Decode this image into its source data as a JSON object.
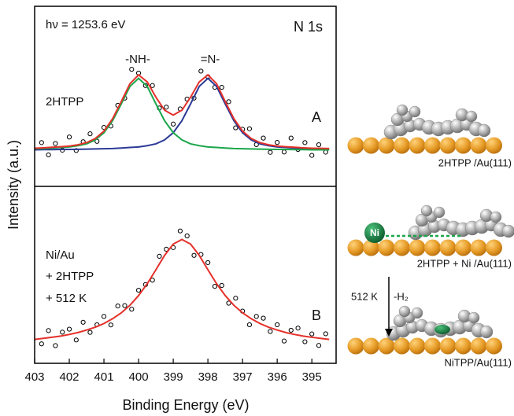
{
  "chart_data": [
    {
      "type": "scatter",
      "annotations": {
        "energy": "hν = 1253.6 eV",
        "core_level": "N 1s",
        "peak_labels": [
          "-NH-",
          "=N-"
        ],
        "sample": "2HTPP",
        "panel": "A"
      },
      "ylabel": "Intensity (a.u.)",
      "xlim": [
        403,
        394.3
      ],
      "ylim": [
        0,
        1
      ],
      "point_color": "#000000",
      "points": {
        "x": [
          402.8,
          402.6,
          402.4,
          402.2,
          402.0,
          401.8,
          401.6,
          401.4,
          401.2,
          401.0,
          400.8,
          400.6,
          400.4,
          400.2,
          400.0,
          399.8,
          399.6,
          399.4,
          399.2,
          399.0,
          398.8,
          398.6,
          398.4,
          398.2,
          398.0,
          397.8,
          397.6,
          397.4,
          397.2,
          397.0,
          396.8,
          396.6,
          396.4,
          396.2,
          396.0,
          395.8,
          395.6,
          395.4,
          395.2,
          395.0,
          394.8,
          394.6
        ],
        "values": [
          0.243,
          0.175,
          0.238,
          0.201,
          0.274,
          0.199,
          0.248,
          0.292,
          0.25,
          0.327,
          0.335,
          0.45,
          0.49,
          0.65,
          0.629,
          0.56,
          0.56,
          0.435,
          0.44,
          0.346,
          0.43,
          0.485,
          0.49,
          0.64,
          0.609,
          0.55,
          0.55,
          0.47,
          0.325,
          0.317,
          0.32,
          0.232,
          0.268,
          0.189,
          0.244,
          0.191,
          0.268,
          0.205,
          0.243,
          0.172,
          0.231,
          0.19
        ]
      },
      "fits": {
        "x": [
          403,
          402.75,
          402.5,
          402.25,
          402,
          401.75,
          401.5,
          401.25,
          401,
          400.75,
          400.5,
          400.25,
          400,
          399.75,
          399.5,
          399.25,
          399,
          398.75,
          398.5,
          398.25,
          398,
          397.75,
          397.5,
          397.25,
          397,
          396.75,
          396.5,
          396.25,
          396,
          395.75,
          395.5,
          395.25,
          395,
          394.75,
          394.5
        ],
        "curves": [
          {
            "color": "#2b3a96",
            "values": [
              0.203,
              0.204,
              0.204,
              0.205,
              0.205,
              0.206,
              0.207,
              0.208,
              0.209,
              0.21,
              0.213,
              0.216,
              0.219,
              0.226,
              0.236,
              0.258,
              0.298,
              0.365,
              0.458,
              0.555,
              0.6,
              0.555,
              0.458,
              0.365,
              0.298,
              0.258,
              0.236,
              0.226,
              0.219,
              0.216,
              0.213,
              0.21,
              0.209,
              0.208,
              0.207
            ]
          },
          {
            "color": "#1aa64a",
            "values": [
              0.209,
              0.21,
              0.213,
              0.216,
              0.219,
              0.226,
              0.236,
              0.258,
              0.298,
              0.365,
              0.458,
              0.555,
              0.6,
              0.555,
              0.458,
              0.365,
              0.298,
              0.258,
              0.236,
              0.226,
              0.219,
              0.216,
              0.213,
              0.21,
              0.209,
              0.208,
              0.207,
              0.206,
              0.205,
              0.205,
              0.204,
              0.204,
              0.203,
              0.203,
              0.203
            ]
          },
          {
            "color": "#e5302a",
            "values": [
              0.212,
              0.214,
              0.217,
              0.22,
              0.224,
              0.231,
              0.243,
              0.266,
              0.307,
              0.376,
              0.471,
              0.57,
              0.619,
              0.58,
              0.495,
              0.423,
              0.396,
              0.423,
              0.495,
              0.58,
              0.619,
              0.57,
              0.471,
              0.376,
              0.307,
              0.266,
              0.243,
              0.231,
              0.224,
              0.22,
              0.217,
              0.214,
              0.212,
              0.211,
              0.21
            ]
          }
        ]
      }
    },
    {
      "type": "scatter",
      "annotations": {
        "sample": [
          "Ni/Au",
          "+ 2HTPP",
          "+ 512 K"
        ],
        "panel": "B"
      },
      "xlabel": "Binding Energy (eV)",
      "xlim": [
        403,
        394.3
      ],
      "xticks": [
        403,
        402,
        401,
        400,
        399,
        398,
        397,
        396,
        395
      ],
      "ylim": [
        0,
        1
      ],
      "point_color": "#000000",
      "points": {
        "x": [
          402.8,
          402.6,
          402.4,
          402.2,
          402.0,
          401.8,
          401.6,
          401.4,
          401.2,
          401.0,
          400.8,
          400.6,
          400.4,
          400.2,
          400.0,
          399.8,
          399.6,
          399.4,
          399.2,
          399.0,
          398.8,
          398.6,
          398.4,
          398.2,
          398.0,
          397.8,
          397.6,
          397.4,
          397.2,
          397.0,
          396.8,
          396.6,
          396.4,
          396.2,
          396.0,
          395.8,
          395.6,
          395.4,
          395.2,
          395.0,
          394.8,
          394.6
        ],
        "values": [
          0.11,
          0.185,
          0.1,
          0.176,
          0.193,
          0.132,
          0.232,
          0.175,
          0.218,
          0.265,
          0.217,
          0.324,
          0.326,
          0.306,
          0.413,
          0.445,
          0.47,
          0.605,
          0.645,
          0.654,
          0.748,
          0.72,
          0.61,
          0.615,
          0.569,
          0.435,
          0.44,
          0.34,
          0.368,
          0.295,
          0.218,
          0.265,
          0.255,
          0.18,
          0.218,
          0.126,
          0.187,
          0.199,
          0.122,
          0.166,
          0.101,
          0.167
        ]
      },
      "fits": {
        "x": [
          403,
          402.75,
          402.5,
          402.25,
          402,
          401.75,
          401.5,
          401.25,
          401,
          400.75,
          400.5,
          400.25,
          400,
          399.75,
          399.5,
          399.25,
          399,
          398.75,
          398.5,
          398.25,
          398,
          397.75,
          397.5,
          397.25,
          397,
          396.75,
          396.5,
          396.25,
          396,
          395.75,
          395.5,
          395.25,
          395,
          394.75,
          394.5
        ],
        "curves": [
          {
            "color": "#e5302a",
            "values": [
              0.135,
              0.141,
              0.147,
              0.154,
              0.163,
              0.174,
              0.188,
              0.204,
              0.225,
              0.252,
              0.285,
              0.328,
              0.383,
              0.45,
              0.529,
              0.61,
              0.674,
              0.7,
              0.674,
              0.61,
              0.529,
              0.45,
              0.383,
              0.328,
              0.285,
              0.252,
              0.225,
              0.204,
              0.188,
              0.174,
              0.163,
              0.154,
              0.147,
              0.141,
              0.135
            ]
          }
        ]
      }
    }
  ],
  "illustration": {
    "captions": [
      "2HTPP /Au(111)",
      "2HTPP + Ni /Au(111)",
      "NiTPP/Au(111)"
    ],
    "atom": "Ni",
    "step": "512 K",
    "product": "-H₂"
  }
}
